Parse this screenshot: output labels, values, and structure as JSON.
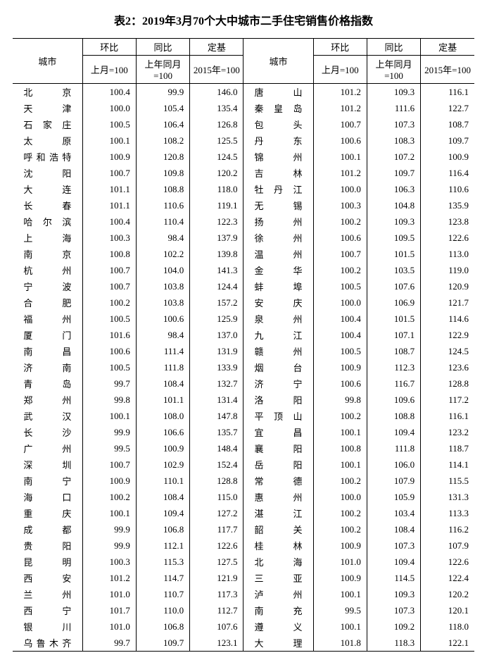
{
  "title": "表2：2019年3月70个大中城市二手住宅销售价格指数",
  "header": {
    "city": "城市",
    "mom": "环比",
    "yoy": "同比",
    "base": "定基",
    "mom_sub": "上月=100",
    "yoy_sub": "上年同月=100",
    "base_sub": "2015年=100"
  },
  "left": [
    {
      "c": "北　　京",
      "m": "100.4",
      "y": "99.9",
      "b": "146.0"
    },
    {
      "c": "天　　津",
      "m": "100.0",
      "y": "105.4",
      "b": "135.4"
    },
    {
      "c": "石 家 庄",
      "m": "100.5",
      "y": "106.4",
      "b": "126.8"
    },
    {
      "c": "太　　原",
      "m": "100.1",
      "y": "108.2",
      "b": "125.5"
    },
    {
      "c": "呼和浩特",
      "m": "100.9",
      "y": "120.8",
      "b": "124.5"
    },
    {
      "c": "沈　　阳",
      "m": "100.7",
      "y": "109.8",
      "b": "120.2"
    },
    {
      "c": "大　　连",
      "m": "101.1",
      "y": "108.8",
      "b": "118.0"
    },
    {
      "c": "长　　春",
      "m": "101.1",
      "y": "110.6",
      "b": "119.1"
    },
    {
      "c": "哈 尔 滨",
      "m": "100.4",
      "y": "110.4",
      "b": "122.3"
    },
    {
      "c": "上　　海",
      "m": "100.3",
      "y": "98.4",
      "b": "137.9"
    },
    {
      "c": "南　　京",
      "m": "100.8",
      "y": "102.2",
      "b": "139.8"
    },
    {
      "c": "杭　　州",
      "m": "100.7",
      "y": "104.0",
      "b": "141.3"
    },
    {
      "c": "宁　　波",
      "m": "100.7",
      "y": "103.8",
      "b": "124.4"
    },
    {
      "c": "合　　肥",
      "m": "100.2",
      "y": "103.8",
      "b": "157.2"
    },
    {
      "c": "福　　州",
      "m": "100.5",
      "y": "100.6",
      "b": "125.9"
    },
    {
      "c": "厦　　门",
      "m": "101.6",
      "y": "98.4",
      "b": "137.0"
    },
    {
      "c": "南　　昌",
      "m": "100.6",
      "y": "111.4",
      "b": "131.9"
    },
    {
      "c": "济　　南",
      "m": "100.5",
      "y": "111.8",
      "b": "133.9"
    },
    {
      "c": "青　　岛",
      "m": "99.7",
      "y": "108.4",
      "b": "132.7"
    },
    {
      "c": "郑　　州",
      "m": "99.8",
      "y": "101.1",
      "b": "131.4"
    },
    {
      "c": "武　　汉",
      "m": "100.1",
      "y": "108.0",
      "b": "147.8"
    },
    {
      "c": "长　　沙",
      "m": "99.9",
      "y": "106.6",
      "b": "135.7"
    },
    {
      "c": "广　　州",
      "m": "99.5",
      "y": "100.9",
      "b": "148.4"
    },
    {
      "c": "深　　圳",
      "m": "100.7",
      "y": "102.9",
      "b": "152.4"
    },
    {
      "c": "南　　宁",
      "m": "100.9",
      "y": "110.1",
      "b": "128.8"
    },
    {
      "c": "海　　口",
      "m": "100.2",
      "y": "108.4",
      "b": "115.0"
    },
    {
      "c": "重　　庆",
      "m": "100.1",
      "y": "109.4",
      "b": "127.2"
    },
    {
      "c": "成　　都",
      "m": "99.9",
      "y": "106.8",
      "b": "117.7"
    },
    {
      "c": "贵　　阳",
      "m": "99.9",
      "y": "112.1",
      "b": "122.6"
    },
    {
      "c": "昆　　明",
      "m": "100.3",
      "y": "115.3",
      "b": "127.5"
    },
    {
      "c": "西　　安",
      "m": "101.2",
      "y": "114.7",
      "b": "121.9"
    },
    {
      "c": "兰　　州",
      "m": "101.0",
      "y": "110.7",
      "b": "117.3"
    },
    {
      "c": "西　　宁",
      "m": "101.7",
      "y": "110.0",
      "b": "112.7"
    },
    {
      "c": "银　　川",
      "m": "101.0",
      "y": "106.8",
      "b": "107.6"
    },
    {
      "c": "乌鲁木齐",
      "m": "99.7",
      "y": "109.7",
      "b": "123.1"
    }
  ],
  "right": [
    {
      "c": "唐　　山",
      "m": "101.2",
      "y": "109.3",
      "b": "116.1"
    },
    {
      "c": "秦 皇 岛",
      "m": "101.2",
      "y": "111.6",
      "b": "122.7"
    },
    {
      "c": "包　　头",
      "m": "100.7",
      "y": "107.3",
      "b": "108.7"
    },
    {
      "c": "丹　　东",
      "m": "100.6",
      "y": "108.3",
      "b": "109.7"
    },
    {
      "c": "锦　　州",
      "m": "100.1",
      "y": "107.2",
      "b": "100.9"
    },
    {
      "c": "吉　　林",
      "m": "101.2",
      "y": "109.7",
      "b": "116.4"
    },
    {
      "c": "牡 丹 江",
      "m": "100.0",
      "y": "106.3",
      "b": "110.6"
    },
    {
      "c": "无　　锡",
      "m": "100.3",
      "y": "104.8",
      "b": "135.9"
    },
    {
      "c": "扬　　州",
      "m": "100.2",
      "y": "109.3",
      "b": "123.8"
    },
    {
      "c": "徐　　州",
      "m": "100.6",
      "y": "109.5",
      "b": "122.6"
    },
    {
      "c": "温　　州",
      "m": "100.7",
      "y": "101.5",
      "b": "113.0"
    },
    {
      "c": "金　　华",
      "m": "100.2",
      "y": "103.5",
      "b": "119.0"
    },
    {
      "c": "蚌　　埠",
      "m": "100.5",
      "y": "107.6",
      "b": "120.9"
    },
    {
      "c": "安　　庆",
      "m": "100.0",
      "y": "106.9",
      "b": "121.7"
    },
    {
      "c": "泉　　州",
      "m": "100.4",
      "y": "101.5",
      "b": "114.6"
    },
    {
      "c": "九　　江",
      "m": "100.4",
      "y": "107.1",
      "b": "122.9"
    },
    {
      "c": "赣　　州",
      "m": "100.5",
      "y": "108.7",
      "b": "124.5"
    },
    {
      "c": "烟　　台",
      "m": "100.9",
      "y": "112.3",
      "b": "123.6"
    },
    {
      "c": "济　　宁",
      "m": "100.6",
      "y": "116.7",
      "b": "128.8"
    },
    {
      "c": "洛　　阳",
      "m": "99.8",
      "y": "109.6",
      "b": "117.2"
    },
    {
      "c": "平 顶 山",
      "m": "100.2",
      "y": "108.8",
      "b": "116.1"
    },
    {
      "c": "宜　　昌",
      "m": "100.1",
      "y": "109.4",
      "b": "123.2"
    },
    {
      "c": "襄　　阳",
      "m": "100.8",
      "y": "111.8",
      "b": "118.7"
    },
    {
      "c": "岳　　阳",
      "m": "100.1",
      "y": "106.0",
      "b": "114.1"
    },
    {
      "c": "常　　德",
      "m": "100.2",
      "y": "107.9",
      "b": "115.5"
    },
    {
      "c": "惠　　州",
      "m": "100.0",
      "y": "105.9",
      "b": "131.3"
    },
    {
      "c": "湛　　江",
      "m": "100.2",
      "y": "103.4",
      "b": "113.3"
    },
    {
      "c": "韶　　关",
      "m": "100.2",
      "y": "108.4",
      "b": "116.2"
    },
    {
      "c": "桂　　林",
      "m": "100.9",
      "y": "107.3",
      "b": "107.9"
    },
    {
      "c": "北　　海",
      "m": "101.0",
      "y": "109.4",
      "b": "122.6"
    },
    {
      "c": "三　　亚",
      "m": "100.9",
      "y": "114.5",
      "b": "122.4"
    },
    {
      "c": "泸　　州",
      "m": "100.1",
      "y": "109.3",
      "b": "120.2"
    },
    {
      "c": "南　　充",
      "m": "99.5",
      "y": "107.3",
      "b": "120.1"
    },
    {
      "c": "遵　　义",
      "m": "100.1",
      "y": "109.2",
      "b": "118.0"
    },
    {
      "c": "大　　理",
      "m": "101.8",
      "y": "118.3",
      "b": "122.1"
    }
  ]
}
